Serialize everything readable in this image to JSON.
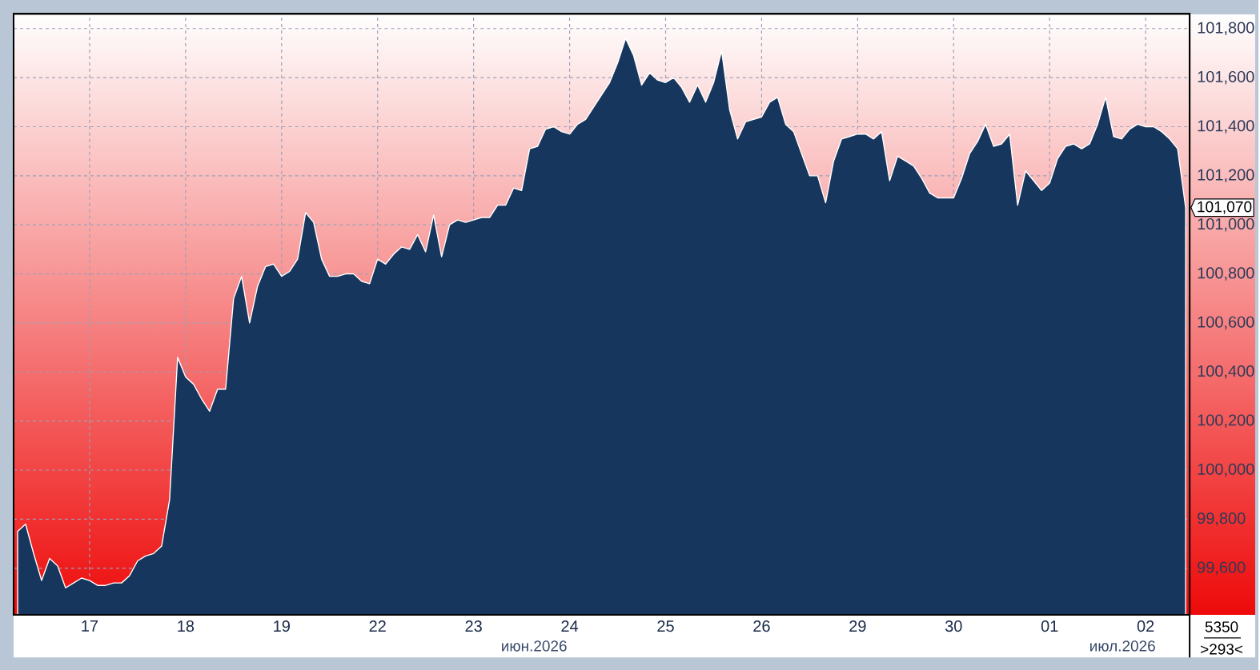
{
  "chart_data": {
    "type": "area",
    "categories": [
      null,
      null,
      null,
      null,
      null,
      null,
      null,
      null,
      null,
      "17",
      null,
      null,
      null,
      null,
      null,
      null,
      null,
      null,
      null,
      null,
      null,
      "18",
      null,
      null,
      null,
      null,
      null,
      null,
      null,
      null,
      null,
      null,
      null,
      "19",
      null,
      null,
      null,
      null,
      null,
      null,
      null,
      null,
      null,
      null,
      null,
      "22",
      null,
      null,
      null,
      null,
      null,
      null,
      null,
      null,
      null,
      null,
      null,
      "23",
      null,
      null,
      null,
      null,
      null,
      null,
      null,
      null,
      null,
      null,
      null,
      "24",
      null,
      null,
      null,
      null,
      null,
      null,
      null,
      null,
      null,
      null,
      null,
      "25",
      null,
      null,
      null,
      null,
      null,
      null,
      null,
      null,
      null,
      null,
      null,
      "26",
      null,
      null,
      null,
      null,
      null,
      null,
      null,
      null,
      null,
      null,
      null,
      "29",
      null,
      null,
      null,
      null,
      null,
      null,
      null,
      null,
      null,
      null,
      null,
      "30",
      null,
      null,
      null,
      null,
      null,
      null,
      null,
      null,
      null,
      null,
      null,
      "01",
      null,
      null,
      null,
      null,
      null,
      null,
      null,
      null,
      null,
      null,
      null,
      "02",
      null,
      null,
      null,
      null,
      null
    ],
    "series": [
      {
        "color": "#17365d",
        "values": [
          99750,
          99780,
          99660,
          99550,
          99640,
          99610,
          99520,
          99540,
          99560,
          99550,
          99530,
          99530,
          99540,
          99540,
          99570,
          99630,
          99650,
          99660,
          99690,
          99880,
          100460,
          100380,
          100350,
          100290,
          100240,
          100330,
          100330,
          100700,
          100790,
          100600,
          100750,
          100830,
          100840,
          100790,
          100810,
          100860,
          101050,
          101010,
          100860,
          100790,
          100790,
          100800,
          100800,
          100770,
          100760,
          100860,
          100840,
          100880,
          100910,
          100900,
          100960,
          100890,
          101040,
          100870,
          101000,
          101020,
          101010,
          101020,
          101030,
          101030,
          101080,
          101080,
          101150,
          101140,
          101310,
          101320,
          101390,
          101400,
          101380,
          101370,
          101410,
          101430,
          101480,
          101530,
          101580,
          101660,
          101760,
          101690,
          101570,
          101620,
          101590,
          101580,
          101600,
          101560,
          101500,
          101570,
          101500,
          101580,
          101710,
          101470,
          101350,
          101420,
          101430,
          101440,
          101500,
          101520,
          101410,
          101380,
          101290,
          101200,
          101200,
          101090,
          101260,
          101350,
          101360,
          101370,
          101370,
          101350,
          101380,
          101180,
          101280,
          101260,
          101240,
          101190,
          101130,
          101110,
          101110,
          101110,
          101190,
          101290,
          101340,
          101410,
          101320,
          101330,
          101370,
          101080,
          101220,
          101180,
          101140,
          101170,
          101270,
          101320,
          101330,
          101310,
          101330,
          101410,
          101520,
          101360,
          101350,
          101390,
          101410,
          101400,
          101400,
          101380,
          101350,
          101310,
          101070
        ]
      }
    ],
    "ylim": [
      99410,
      101860
    ],
    "yticks": [
      {
        "value": 99600,
        "label": "99,600"
      },
      {
        "value": 99800,
        "label": "99,800"
      },
      {
        "value": 100000,
        "label": "100,000"
      },
      {
        "value": 100200,
        "label": "100,200"
      },
      {
        "value": 100400,
        "label": "100,400"
      },
      {
        "value": 100600,
        "label": "100,600"
      },
      {
        "value": 100800,
        "label": "100,800"
      },
      {
        "value": 101000,
        "label": "101,000"
      },
      {
        "value": 101200,
        "label": "101,200"
      },
      {
        "value": 101400,
        "label": "101,400"
      },
      {
        "value": 101600,
        "label": "101,600"
      },
      {
        "value": 101800,
        "label": "101,800"
      }
    ],
    "grid": true,
    "annotations": [
      "101,070",
      "июн.2026",
      "июл.2026",
      "5350",
      ">293<"
    ]
  }
}
